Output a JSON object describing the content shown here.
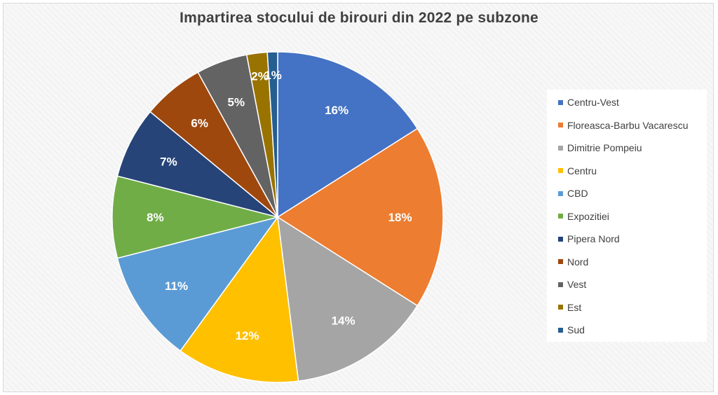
{
  "chart_data": {
    "type": "pie",
    "title": "Impartirea stocului de birouri din 2022 pe subzone",
    "legend_position": "right",
    "slices": [
      {
        "name": "Centru-Vest",
        "value": 16,
        "label": "16%",
        "color": "#4472C4"
      },
      {
        "name": "Floreasca-Barbu Vacarescu",
        "value": 18,
        "label": "18%",
        "color": "#ED7D31"
      },
      {
        "name": "Dimitrie Pompeiu",
        "value": 14,
        "label": "14%",
        "color": "#A5A5A5"
      },
      {
        "name": "Centru",
        "value": 12,
        "label": "12%",
        "color": "#FFC000"
      },
      {
        "name": "CBD",
        "value": 11,
        "label": "11%",
        "color": "#5B9BD5"
      },
      {
        "name": "Expozitiei",
        "value": 8,
        "label": "8%",
        "color": "#70AD47"
      },
      {
        "name": "Pipera Nord",
        "value": 7,
        "label": "7%",
        "color": "#264478"
      },
      {
        "name": "Nord",
        "value": 6,
        "label": "6%",
        "color": "#9E480E"
      },
      {
        "name": "Vest",
        "value": 5,
        "label": "5%",
        "color": "#636363"
      },
      {
        "name": "Est",
        "value": 2,
        "label": "2%",
        "color": "#997300"
      },
      {
        "name": "Sud",
        "value": 1,
        "label": "1%",
        "color": "#255E91"
      }
    ]
  }
}
